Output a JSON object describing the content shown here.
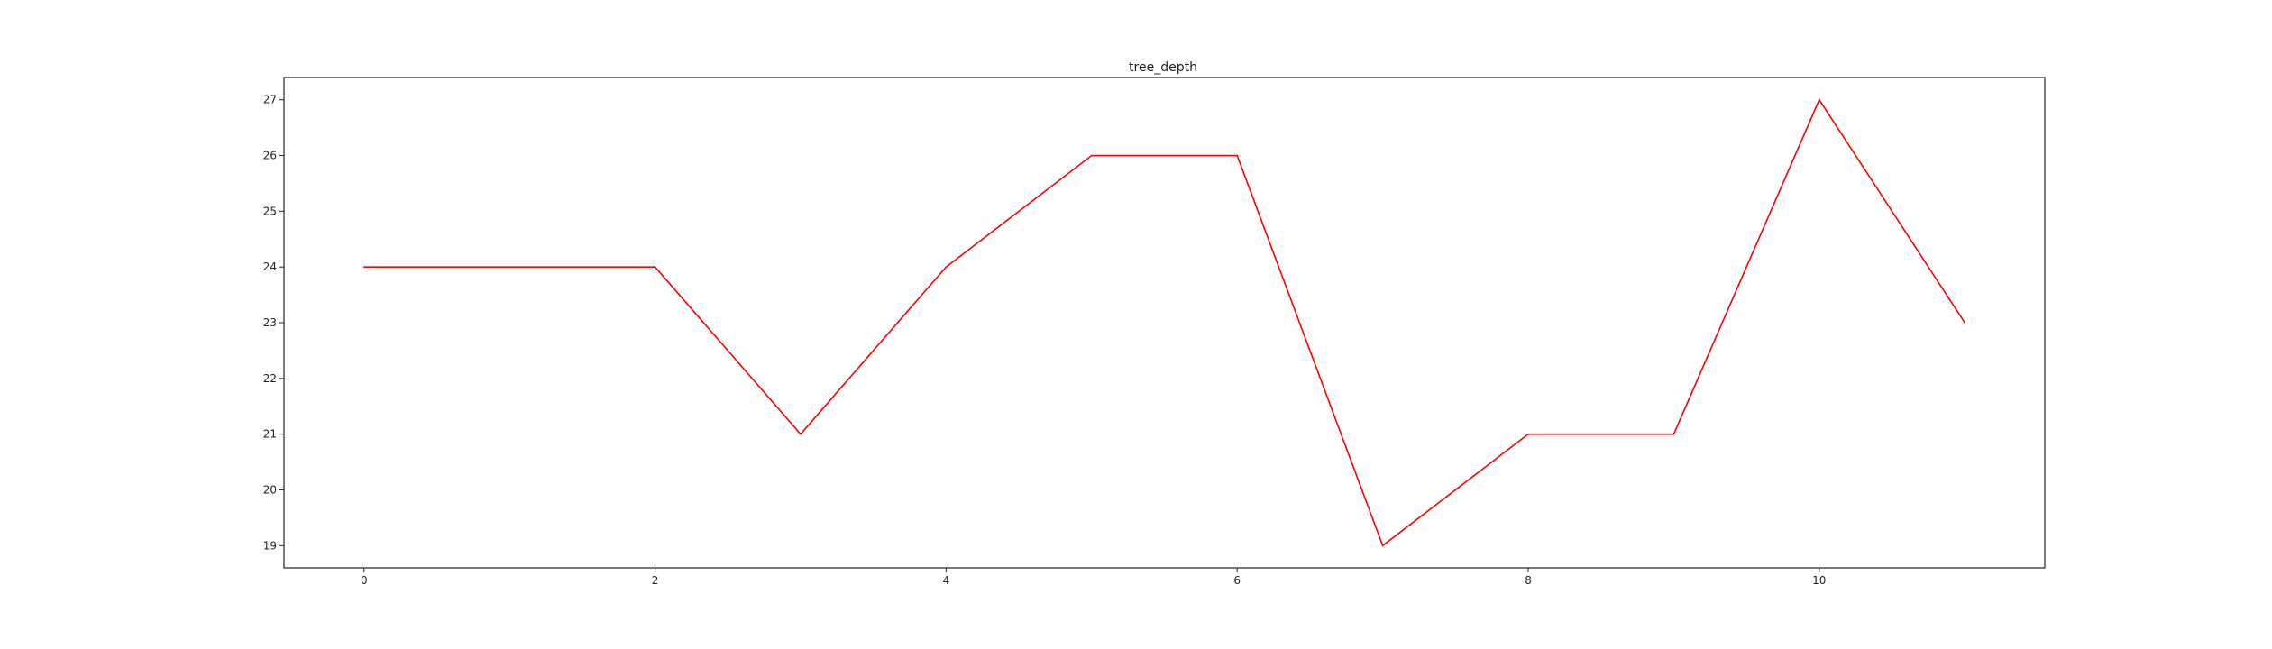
{
  "chart_data": {
    "type": "line",
    "title": "tree_depth",
    "xlabel": "",
    "ylabel": "",
    "x": [
      0,
      1,
      2,
      3,
      4,
      5,
      6,
      7,
      8,
      9,
      10,
      11
    ],
    "series": [
      {
        "color": "#ff0000",
        "values": [
          24,
          24,
          24,
          21,
          24,
          26,
          26,
          19,
          21,
          21,
          27,
          23
        ]
      }
    ],
    "xlim": [
      -0.55,
      11.55
    ],
    "ylim": [
      18.6,
      27.4
    ],
    "xticks": [
      0,
      2,
      4,
      6,
      8,
      10
    ],
    "yticks": [
      19,
      20,
      21,
      22,
      23,
      24,
      25,
      26,
      27
    ],
    "grid": false,
    "legend": "none"
  }
}
